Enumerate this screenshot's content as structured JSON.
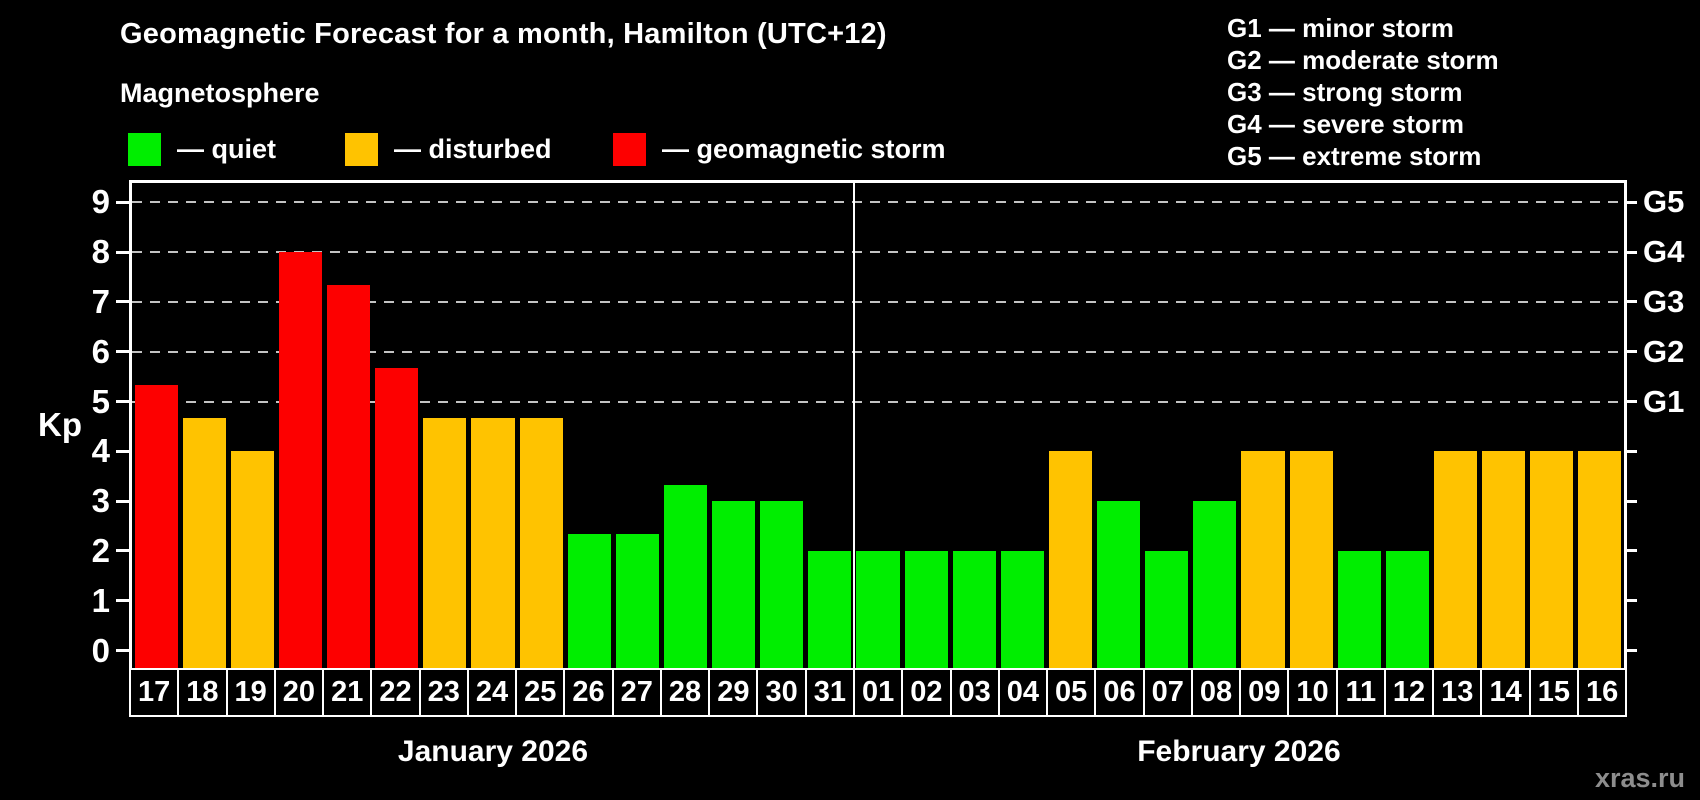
{
  "title": "Geomagnetic Forecast for a month, Hamilton (UTC+12)",
  "subtitle": "Magnetosphere",
  "kp_axis_label": "Kp",
  "watermark": "xras.ru",
  "legend": {
    "quiet": "— quiet",
    "disturbed": "— disturbed",
    "storm": "— geomagnetic storm"
  },
  "storm_scale": [
    "G1 — minor storm",
    "G2 — moderate storm",
    "G3 — strong storm",
    "G4 — severe storm",
    "G5 — extreme storm"
  ],
  "colors": {
    "quiet": "#00ee00",
    "disturbed": "#ffc300",
    "storm": "#fd0000",
    "grid": "#c3c3c3",
    "axis": "#ffffff",
    "watermark": "#8d8d8d"
  },
  "months": [
    {
      "label": "January 2026",
      "days": 15
    },
    {
      "label": "February 2026",
      "days": 16
    }
  ],
  "chart_data": {
    "type": "bar",
    "title": "Geomagnetic Forecast for a month, Hamilton (UTC+12)",
    "xlabel": "",
    "ylabel": "Kp",
    "ylim": [
      0,
      9
    ],
    "grid": "dashed horizontal at Kp 5-9",
    "legend_position": "top-left",
    "y_ticks": [
      0,
      1,
      2,
      3,
      4,
      5,
      6,
      7,
      8,
      9
    ],
    "right_axis": [
      {
        "kp": 5,
        "label": "G1"
      },
      {
        "kp": 6,
        "label": "G2"
      },
      {
        "kp": 7,
        "label": "G3"
      },
      {
        "kp": 8,
        "label": "G4"
      },
      {
        "kp": 9,
        "label": "G5"
      }
    ],
    "categories": [
      "17",
      "18",
      "19",
      "20",
      "21",
      "22",
      "23",
      "24",
      "25",
      "26",
      "27",
      "28",
      "29",
      "30",
      "31",
      "01",
      "02",
      "03",
      "04",
      "05",
      "06",
      "07",
      "08",
      "09",
      "10",
      "11",
      "12",
      "13",
      "14",
      "15",
      "16"
    ],
    "points": [
      {
        "month": "January 2026",
        "day": "17",
        "kp": 5.33,
        "status": "storm"
      },
      {
        "month": "January 2026",
        "day": "18",
        "kp": 4.67,
        "status": "disturbed"
      },
      {
        "month": "January 2026",
        "day": "19",
        "kp": 4.0,
        "status": "disturbed"
      },
      {
        "month": "January 2026",
        "day": "20",
        "kp": 8.0,
        "status": "storm"
      },
      {
        "month": "January 2026",
        "day": "21",
        "kp": 7.33,
        "status": "storm"
      },
      {
        "month": "January 2026",
        "day": "22",
        "kp": 5.67,
        "status": "storm"
      },
      {
        "month": "January 2026",
        "day": "23",
        "kp": 4.67,
        "status": "disturbed"
      },
      {
        "month": "January 2026",
        "day": "24",
        "kp": 4.67,
        "status": "disturbed"
      },
      {
        "month": "January 2026",
        "day": "25",
        "kp": 4.67,
        "status": "disturbed"
      },
      {
        "month": "January 2026",
        "day": "26",
        "kp": 2.33,
        "status": "quiet"
      },
      {
        "month": "January 2026",
        "day": "27",
        "kp": 2.33,
        "status": "quiet"
      },
      {
        "month": "January 2026",
        "day": "28",
        "kp": 3.33,
        "status": "quiet"
      },
      {
        "month": "January 2026",
        "day": "29",
        "kp": 3.0,
        "status": "quiet"
      },
      {
        "month": "January 2026",
        "day": "30",
        "kp": 3.0,
        "status": "quiet"
      },
      {
        "month": "January 2026",
        "day": "31",
        "kp": 2.0,
        "status": "quiet"
      },
      {
        "month": "February 2026",
        "day": "01",
        "kp": 2.0,
        "status": "quiet"
      },
      {
        "month": "February 2026",
        "day": "02",
        "kp": 2.0,
        "status": "quiet"
      },
      {
        "month": "February 2026",
        "day": "03",
        "kp": 2.0,
        "status": "quiet"
      },
      {
        "month": "February 2026",
        "day": "04",
        "kp": 2.0,
        "status": "quiet"
      },
      {
        "month": "February 2026",
        "day": "05",
        "kp": 4.0,
        "status": "disturbed"
      },
      {
        "month": "February 2026",
        "day": "06",
        "kp": 3.0,
        "status": "quiet"
      },
      {
        "month": "February 2026",
        "day": "07",
        "kp": 2.0,
        "status": "quiet"
      },
      {
        "month": "February 2026",
        "day": "08",
        "kp": 3.0,
        "status": "quiet"
      },
      {
        "month": "February 2026",
        "day": "09",
        "kp": 4.0,
        "status": "disturbed"
      },
      {
        "month": "February 2026",
        "day": "10",
        "kp": 4.0,
        "status": "disturbed"
      },
      {
        "month": "February 2026",
        "day": "11",
        "kp": 2.0,
        "status": "quiet"
      },
      {
        "month": "February 2026",
        "day": "12",
        "kp": 2.0,
        "status": "quiet"
      },
      {
        "month": "February 2026",
        "day": "13",
        "kp": 4.0,
        "status": "disturbed"
      },
      {
        "month": "February 2026",
        "day": "14",
        "kp": 4.0,
        "status": "disturbed"
      },
      {
        "month": "February 2026",
        "day": "15",
        "kp": 4.0,
        "status": "disturbed"
      },
      {
        "month": "February 2026",
        "day": "16",
        "kp": 4.0,
        "status": "disturbed"
      }
    ]
  }
}
